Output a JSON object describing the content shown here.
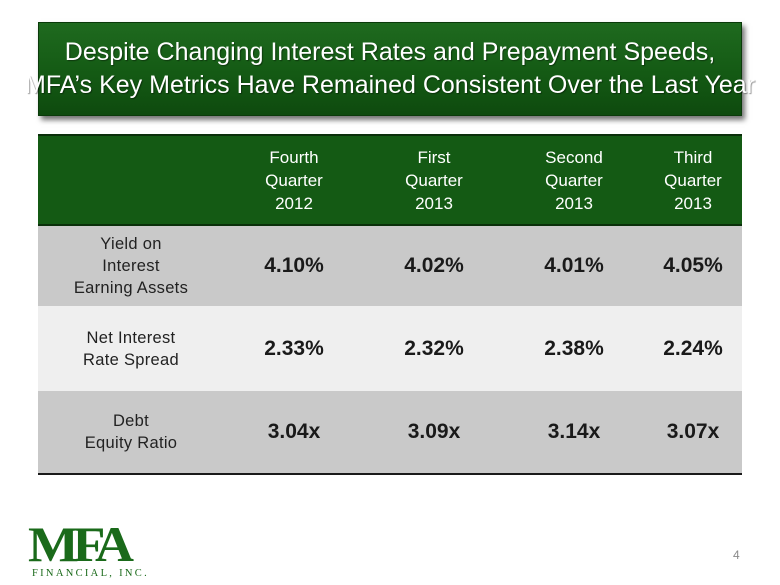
{
  "title": {
    "line1": "Despite Changing Interest Rates and Prepayment Speeds,",
    "line2": "MFA’s Key Metrics Have Remained Consistent Over the Last Year"
  },
  "table": {
    "columns": [
      {
        "line1": "Fourth",
        "line2": "Quarter",
        "line3": "2012"
      },
      {
        "line1": "First",
        "line2": "Quarter",
        "line3": "2013"
      },
      {
        "line1": "Second",
        "line2": "Quarter",
        "line3": "2013"
      },
      {
        "line1": "Third",
        "line2": "Quarter",
        "line3": "2013"
      }
    ],
    "rows": [
      {
        "label_lines": [
          "Yield on",
          "Interest",
          "Earning Assets"
        ],
        "values": [
          "4.10%",
          "4.02%",
          "4.01%",
          "4.05%"
        ]
      },
      {
        "label_lines": [
          "Net Interest",
          "Rate Spread"
        ],
        "values": [
          "2.33%",
          "2.32%",
          "2.38%",
          "2.24%"
        ]
      },
      {
        "label_lines": [
          "Debt",
          "Equity Ratio"
        ],
        "values": [
          "3.04x",
          "3.09x",
          "3.14x",
          "3.07x"
        ]
      }
    ]
  },
  "logo": {
    "mark": "MFA",
    "subtitle": "FINANCIAL, INC."
  },
  "page_number": "4",
  "colors": {
    "header_green": "#145a14",
    "row_gray": "#c9c9c9",
    "row_light": "#efefef",
    "logo_green": "#1a6a1a"
  }
}
